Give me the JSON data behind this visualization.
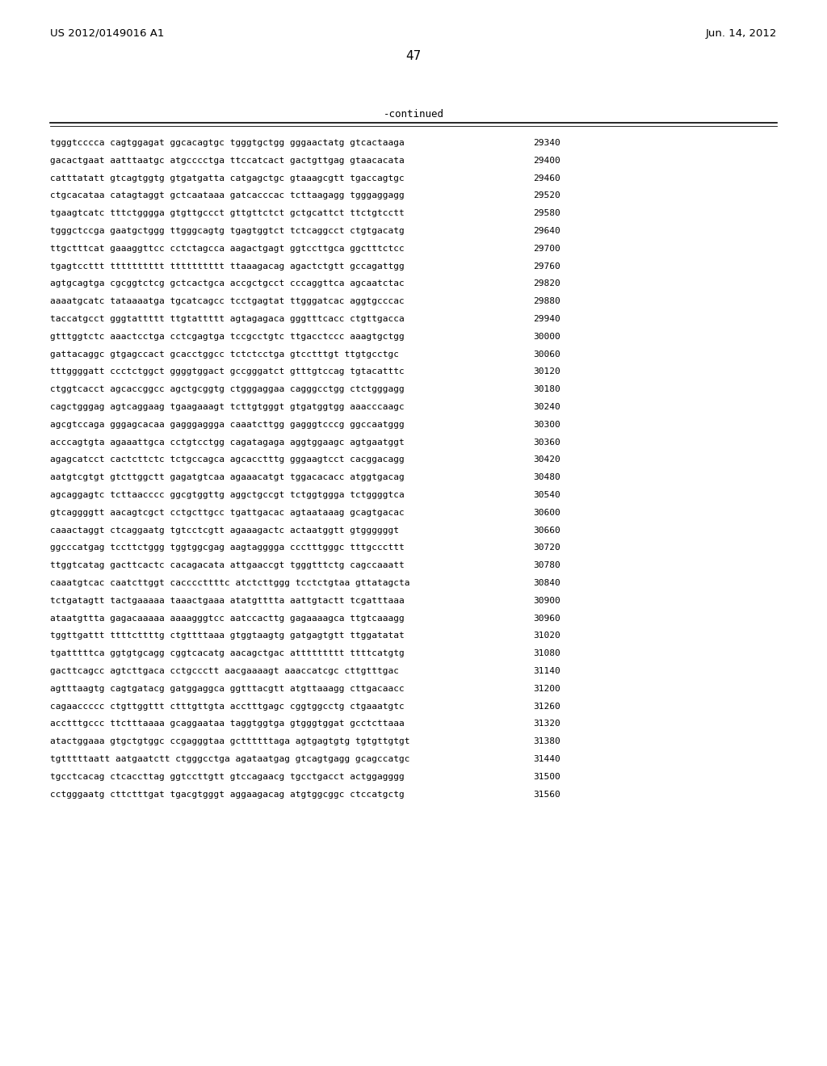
{
  "header_left": "US 2012/0149016 A1",
  "header_right": "Jun. 14, 2012",
  "page_number": "47",
  "continued_label": "-continued",
  "background_color": "#ffffff",
  "text_color": "#000000",
  "sequence_lines": [
    [
      "tgggtcccca cagtggagat ggcacagtgc tgggtgctgg gggaactatg gtcactaaga",
      "29340"
    ],
    [
      "gacactgaat aatttaatgc atgcccctga ttccatcact gactgttgag gtaacacata",
      "29400"
    ],
    [
      "catttatatt gtcagtggtg gtgatgatta catgagctgc gtaaagcgtt tgaccagtgc",
      "29460"
    ],
    [
      "ctgcacataa catagtaggt gctcaataaa gatcacccac tcttaagagg tgggaggagg",
      "29520"
    ],
    [
      "tgaagtcatc tttctgggga gtgttgccct gttgttctct gctgcattct ttctgtcctt",
      "29580"
    ],
    [
      "tgggctccga gaatgctggg ttgggcagtg tgagtggtct tctcaggcct ctgtgacatg",
      "29640"
    ],
    [
      "ttgctttcat gaaaggttcc cctctagcca aagactgagt ggtccttgca ggctttctcc",
      "29700"
    ],
    [
      "tgagtccttt tttttttttt tttttttttt ttaaagacag agactctgtt gccagattgg",
      "29760"
    ],
    [
      "agtgcagtga cgcggtctcg gctcactgca accgctgcct cccaggttca agcaatctac",
      "29820"
    ],
    [
      "aaaatgcatc tataaaatga tgcatcagcc tcctgagtat ttgggatcac aggtgcccac",
      "29880"
    ],
    [
      "taccatgcct gggtattttt ttgtattttt agtagagaca gggtttcacc ctgttgacca",
      "29940"
    ],
    [
      "gtttggtctc aaactcctga cctcgagtga tccgcctgtc ttgacctccc aaagtgctgg",
      "30000"
    ],
    [
      "gattacaggc gtgagccact gcacctggcc tctctcctga gtcctttgt ttgtgcctgc",
      "30060"
    ],
    [
      "tttggggatt ccctctggct ggggtggact gccgggatct gtttgtccag tgtacatttc",
      "30120"
    ],
    [
      "ctggtcacct agcaccggcc agctgcggtg ctgggaggaa cagggcctgg ctctgggagg",
      "30180"
    ],
    [
      "cagctgggag agtcaggaag tgaagaaagt tcttgtgggt gtgatggtgg aaacccaagc",
      "30240"
    ],
    [
      "agcgtccaga gggagcacaa gagggaggga caaatcttgg gagggtcccg ggccaatggg",
      "30300"
    ],
    [
      "acccagtgta agaaattgca cctgtcctgg cagatagaga aggtggaagc agtgaatggt",
      "30360"
    ],
    [
      "agagcatcct cactcttctc tctgccagca agcacctttg gggaagtcct cacggacagg",
      "30420"
    ],
    [
      "aatgtcgtgt gtcttggctt gagatgtcaa agaaacatgt tggacacacc atggtgacag",
      "30480"
    ],
    [
      "agcaggagtc tcttaacccc ggcgtggttg aggctgccgt tctggtggga tctggggtca",
      "30540"
    ],
    [
      "gtcaggggtt aacagtcgct cctgcttgcc tgattgacac agtaataaag gcagtgacac",
      "30600"
    ],
    [
      "caaactaggt ctcaggaatg tgtcctcgtt agaaagactc actaatggtt gtggggggt",
      "30660"
    ],
    [
      "ggcccatgag tccttctggg tggtggcgag aagtagggga ccctttgggc tttgcccttt",
      "30720"
    ],
    [
      "ttggtcatag gacttcactc cacagacata attgaaccgt tgggtttctg cagccaaatt",
      "30780"
    ],
    [
      "caaatgtcac caatcttggt caccccttttc atctcttggg tcctctgtaa gttatagcta",
      "30840"
    ],
    [
      "tctgatagtt tactgaaaaa taaactgaaa atatgtttta aattgtactt tcgatttaaa",
      "30900"
    ],
    [
      "ataatgttta gagacaaaaa aaaagggtcc aatccacttg gagaaaagca ttgtcaaagg",
      "30960"
    ],
    [
      "tggttgattt ttttcttttg ctgttttaaa gtggtaagtg gatgagtgtt ttggatatat",
      "31020"
    ],
    [
      "tgatttttca ggtgtgcagg cggtcacatg aacagctgac attttttttt ttttcatgtg",
      "31080"
    ],
    [
      "gacttcagcc agtcttgaca cctgccctt aacgaaaagt aaaccatcgc cttgtttgac",
      "31140"
    ],
    [
      "agtttaagtg cagtgatacg gatggaggca ggtttacgtt atgttaaagg cttgacaacc",
      "31200"
    ],
    [
      "cagaaccccc ctgttggttt ctttgttgta acctttgagc cggtggcctg ctgaaatgtc",
      "31260"
    ],
    [
      "acctttgccc ttctttaaaa gcaggaataa taggtggtga gtgggtggat gcctcttaaa",
      "31320"
    ],
    [
      "atactggaaa gtgctgtggc ccgagggtaa gcttttttaga agtgagtgtg tgtgttgtgt",
      "31380"
    ],
    [
      "tgtttttaatt aatgaatctt ctgggcctga agataatgag gtcagtgagg gcagccatgc",
      "31440"
    ],
    [
      "tgcctcacag ctcaccttag ggtccttgtt gtccagaacg tgcctgacct actggagggg",
      "31500"
    ],
    [
      "cctgggaatg cttctttgat tgacgtgggt aggaagacag atgtggcggc ctccatgctg",
      "31560"
    ]
  ]
}
